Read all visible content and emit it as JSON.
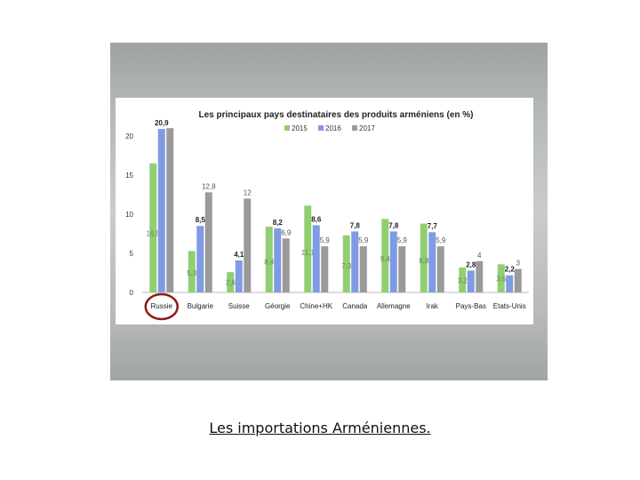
{
  "caption": "Les importations Arméniennes.",
  "colors": {
    "s2015": "#90cf70",
    "s2016": "#7f9be3",
    "s2017": "#9a9a9a",
    "highlight_circle": "#8b1a1a"
  },
  "chart_data": {
    "type": "bar",
    "title": "Les principaux  pays destinataires des produits arméniens (en %)",
    "categories": [
      "Russie",
      "Bulgarie",
      "Suisse",
      "Géorgie",
      "Chine+HK",
      "Canada",
      "Allemagne",
      "Irak",
      "Pays-Bas",
      "Etats-Unis"
    ],
    "series": [
      {
        "name": "2015",
        "values": [
          16.5,
          5.3,
          2.6,
          8.4,
          11.1,
          7.3,
          9.4,
          8.8,
          3.2,
          3.6
        ],
        "labels": [
          "16,5",
          "5,3",
          "2,6",
          "8,4",
          "11,1",
          "7,3",
          "9,4",
          "8,8",
          "3,2",
          "3,6"
        ]
      },
      {
        "name": "2016",
        "values": [
          20.9,
          8.5,
          4.1,
          8.2,
          8.6,
          7.8,
          7.8,
          7.7,
          2.8,
          2.2
        ],
        "labels": [
          "20,9",
          "8,5",
          "4,1",
          "8,2",
          "8,6",
          "7,8",
          "7,8",
          "7,7",
          "2,8",
          "2,2"
        ]
      },
      {
        "name": "2017",
        "values": [
          21.0,
          12.8,
          12.0,
          6.9,
          5.9,
          5.9,
          5.9,
          5.9,
          4.0,
          3.0
        ],
        "labels": [
          "",
          "12,8",
          "12",
          "6,9",
          "5,9",
          "5,9",
          "5,9",
          "5,9",
          "4",
          "3"
        ]
      }
    ],
    "y_ticks": [
      "0",
      "5",
      "10",
      "15",
      "20"
    ],
    "ylim": [
      0,
      22
    ],
    "legend_position": "top",
    "highlight": "Russie",
    "grid": false
  }
}
